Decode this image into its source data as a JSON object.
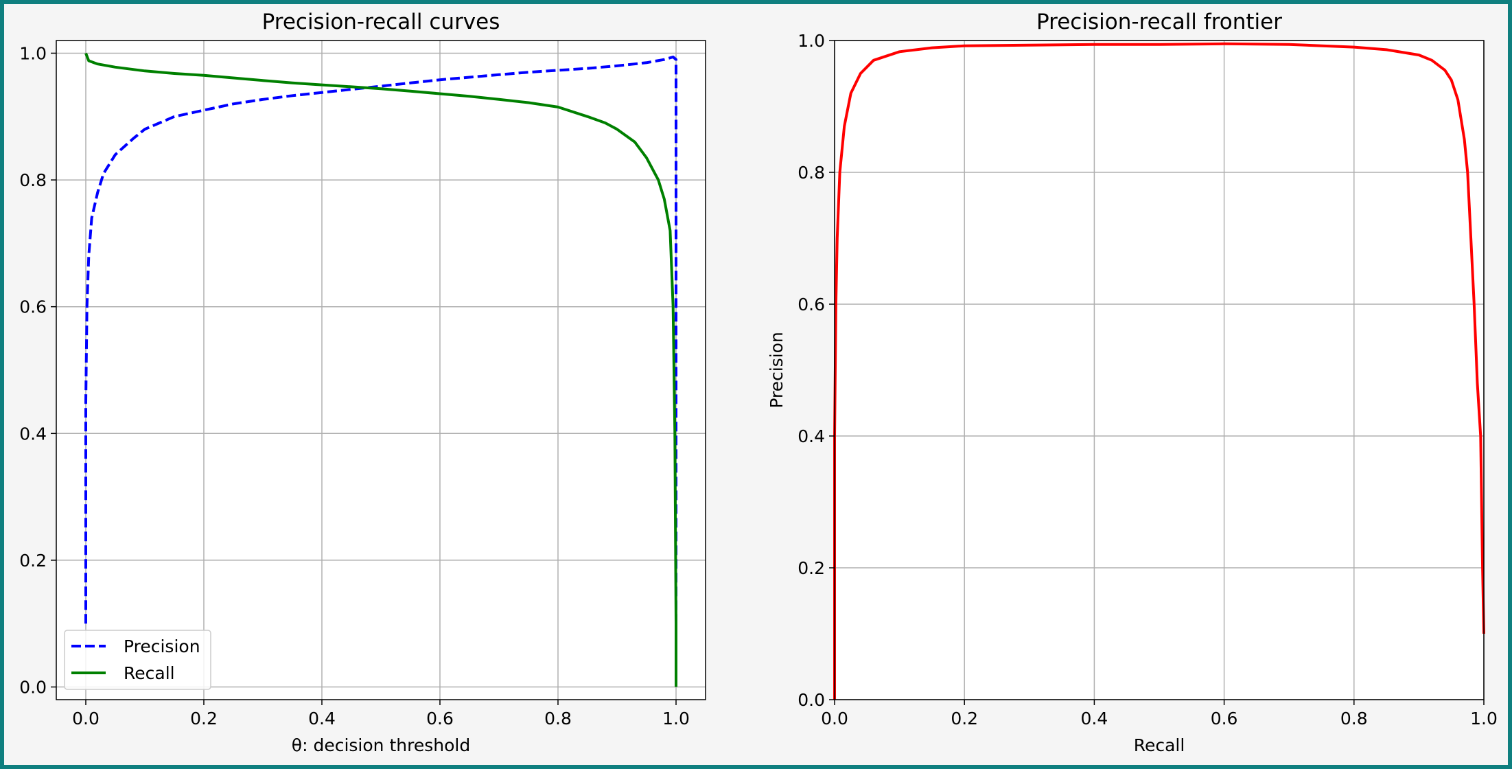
{
  "chart_data": [
    {
      "type": "line",
      "title": "Precision-recall curves",
      "xlabel": "θ: decision threshold",
      "ylabel": "",
      "xlim": [
        -0.05,
        1.05
      ],
      "ylim": [
        -0.02,
        1.02
      ],
      "xticks": [
        "0.0",
        "0.2",
        "0.4",
        "0.6",
        "0.8",
        "1.0"
      ],
      "yticks": [
        "0.0",
        "0.2",
        "0.4",
        "0.6",
        "0.8",
        "1.0"
      ],
      "grid": true,
      "legend": "lower-left",
      "series": [
        {
          "name": "Precision",
          "color": "#0000ff",
          "style": "dashed",
          "x": [
            0.0,
            0.0,
            0.002,
            0.005,
            0.01,
            0.02,
            0.03,
            0.05,
            0.08,
            0.1,
            0.15,
            0.2,
            0.25,
            0.3,
            0.35,
            0.4,
            0.45,
            0.5,
            0.55,
            0.6,
            0.65,
            0.7,
            0.75,
            0.8,
            0.85,
            0.9,
            0.95,
            0.98,
            0.995,
            1.0,
            1.0,
            1.0
          ],
          "y": [
            0.1,
            0.45,
            0.6,
            0.68,
            0.74,
            0.78,
            0.81,
            0.84,
            0.865,
            0.88,
            0.9,
            0.91,
            0.92,
            0.927,
            0.933,
            0.938,
            0.943,
            0.948,
            0.953,
            0.958,
            0.962,
            0.966,
            0.97,
            0.973,
            0.976,
            0.98,
            0.985,
            0.99,
            0.994,
            0.99,
            0.6,
            0.1
          ]
        },
        {
          "name": "Recall",
          "color": "#008000",
          "style": "solid",
          "x": [
            0.0,
            0.005,
            0.02,
            0.05,
            0.1,
            0.15,
            0.2,
            0.25,
            0.3,
            0.35,
            0.4,
            0.45,
            0.5,
            0.55,
            0.6,
            0.65,
            0.7,
            0.75,
            0.8,
            0.85,
            0.88,
            0.9,
            0.93,
            0.95,
            0.97,
            0.98,
            0.99,
            0.995,
            0.998,
            1.0,
            1.0
          ],
          "y": [
            1.0,
            0.988,
            0.983,
            0.978,
            0.972,
            0.968,
            0.965,
            0.961,
            0.957,
            0.953,
            0.95,
            0.947,
            0.944,
            0.94,
            0.936,
            0.932,
            0.927,
            0.922,
            0.915,
            0.9,
            0.89,
            0.88,
            0.86,
            0.835,
            0.8,
            0.77,
            0.72,
            0.6,
            0.4,
            0.1,
            0.0
          ]
        }
      ]
    },
    {
      "type": "line",
      "title": "Precision-recall frontier",
      "xlabel": "Recall",
      "ylabel": "Precision",
      "xlim": [
        0,
        1
      ],
      "ylim": [
        0,
        1
      ],
      "xticks": [
        "0.0",
        "0.2",
        "0.4",
        "0.6",
        "0.8",
        "1.0"
      ],
      "yticks": [
        "0.0",
        "0.2",
        "0.4",
        "0.6",
        "0.8",
        "1.0"
      ],
      "grid": true,
      "series": [
        {
          "color": "#ff0000",
          "style": "solid",
          "x": [
            0.0,
            0.0,
            0.002,
            0.004,
            0.008,
            0.015,
            0.025,
            0.04,
            0.06,
            0.1,
            0.15,
            0.2,
            0.3,
            0.4,
            0.5,
            0.6,
            0.7,
            0.8,
            0.85,
            0.9,
            0.92,
            0.94,
            0.95,
            0.96,
            0.97,
            0.975,
            0.98,
            0.985,
            0.99,
            0.995,
            0.998,
            1.0
          ],
          "y": [
            0.0,
            0.4,
            0.6,
            0.7,
            0.8,
            0.87,
            0.92,
            0.95,
            0.97,
            0.983,
            0.989,
            0.992,
            0.993,
            0.994,
            0.994,
            0.995,
            0.994,
            0.99,
            0.986,
            0.978,
            0.97,
            0.955,
            0.94,
            0.91,
            0.85,
            0.8,
            0.7,
            0.6,
            0.48,
            0.4,
            0.2,
            0.1
          ]
        }
      ]
    }
  ]
}
